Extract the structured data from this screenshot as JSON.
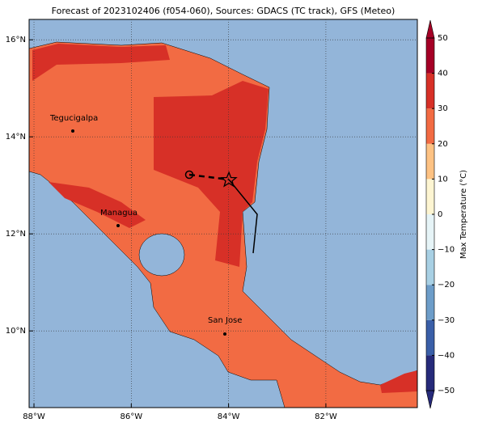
{
  "map": {
    "title": "Forecast of 2023102406 (f054-060), Sources: GDACS (TC track), GFS (Meteo)",
    "xlim": [
      -88.1,
      -80.12
    ],
    "ylim": [
      8.42,
      16.42
    ],
    "xticks": [
      {
        "value": -88,
        "label": "88°W"
      },
      {
        "value": -86,
        "label": "86°W"
      },
      {
        "value": -84,
        "label": "84°W"
      },
      {
        "value": -82,
        "label": "82°W"
      }
    ],
    "yticks": [
      {
        "value": 10,
        "label": "10°N"
      },
      {
        "value": 12,
        "label": "12°N"
      },
      {
        "value": 14,
        "label": "14°N"
      },
      {
        "value": 16,
        "label": "16°N"
      }
    ],
    "cities": [
      "Tegucigalpa",
      "Managua",
      "San Jose"
    ],
    "colorbar": {
      "label": "Max Temperature (°C)",
      "lim": [
        -50,
        50
      ],
      "ticks": [
        {
          "value": -50,
          "label": "−50"
        },
        {
          "value": -40,
          "label": "−40"
        },
        {
          "value": -30,
          "label": "−30"
        },
        {
          "value": -20,
          "label": "−20"
        },
        {
          "value": -10,
          "label": "−10"
        },
        0,
        10,
        20,
        30,
        40,
        50
      ],
      "colors": [
        "#262a7a",
        "#3a5fa8",
        "#6d9dc9",
        "#a8d0e4",
        "#e6f4f7",
        "#fdf5d2",
        "#fdc283",
        "#f26b43",
        "#d73027",
        "#a50026"
      ]
    }
  }
}
